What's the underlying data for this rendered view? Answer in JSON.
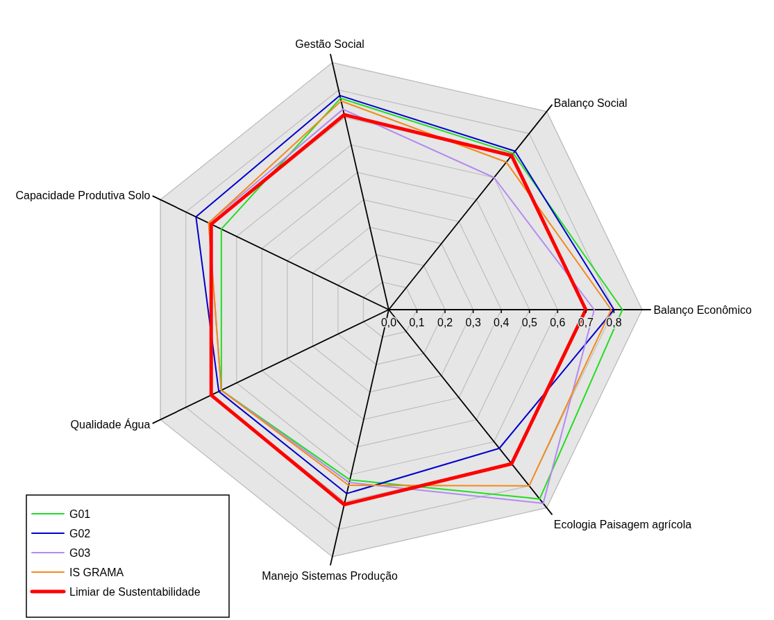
{
  "chart_data": {
    "type": "radar",
    "categories": [
      "Gestão Social",
      "Balanço Social",
      "Balanço Econômico",
      "Ecologia Paisagem agrícola",
      "Manejo Sistemas Produção",
      "Qualidade Água",
      "Capacidade Produtiva Solo"
    ],
    "series": [
      {
        "name": "G01",
        "color": "#22dd22",
        "values": [
          0.77,
          0.71,
          0.83,
          0.86,
          0.62,
          0.66,
          0.66
        ]
      },
      {
        "name": "G02",
        "color": "#0000cc",
        "values": [
          0.78,
          0.72,
          0.8,
          0.63,
          0.67,
          0.67,
          0.76
        ]
      },
      {
        "name": "G03",
        "color": "#b38af0",
        "values": [
          0.73,
          0.6,
          0.73,
          0.88,
          0.63,
          0.66,
          0.71
        ]
      },
      {
        "name": "IS GRAMA",
        "color": "#f28a1a",
        "values": [
          0.76,
          0.67,
          0.79,
          0.8,
          0.64,
          0.66,
          0.71
        ]
      },
      {
        "name": "Limiar de Sustentabilidade",
        "color": "#ff0000",
        "values": [
          0.71,
          0.7,
          0.7,
          0.7,
          0.71,
          0.7,
          0.7
        ]
      }
    ],
    "ylim": [
      0,
      0.9
    ],
    "yticks": [
      {
        "value": 0,
        "label": "0,0"
      },
      {
        "value": 0.1,
        "label": "0,1"
      },
      {
        "value": 0.2,
        "label": "0,2"
      },
      {
        "value": 0.3,
        "label": "0,3"
      },
      {
        "value": 0.4,
        "label": "0,4"
      },
      {
        "value": 0.5,
        "label": "0,5"
      },
      {
        "value": 0.6,
        "label": "0,6"
      },
      {
        "value": 0.7,
        "label": "0,7"
      },
      {
        "value": 0.8,
        "label": "0,8"
      }
    ],
    "grid": true,
    "legend": "bottom left"
  }
}
